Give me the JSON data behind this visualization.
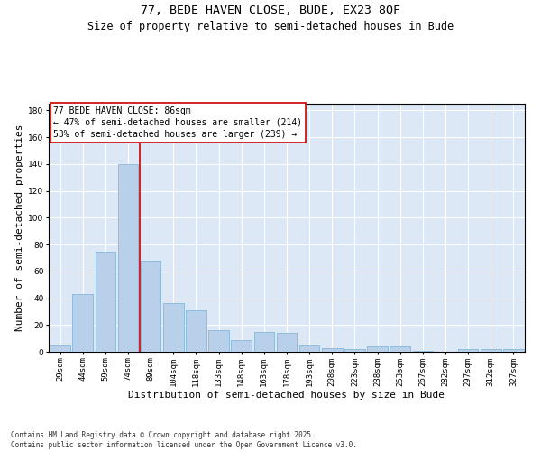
{
  "title1": "77, BEDE HAVEN CLOSE, BUDE, EX23 8QF",
  "title2": "Size of property relative to semi-detached houses in Bude",
  "xlabel": "Distribution of semi-detached houses by size in Bude",
  "ylabel": "Number of semi-detached properties",
  "categories": [
    "29sqm",
    "44sqm",
    "59sqm",
    "74sqm",
    "89sqm",
    "104sqm",
    "118sqm",
    "133sqm",
    "148sqm",
    "163sqm",
    "178sqm",
    "193sqm",
    "208sqm",
    "223sqm",
    "238sqm",
    "253sqm",
    "267sqm",
    "282sqm",
    "297sqm",
    "312sqm",
    "327sqm"
  ],
  "values": [
    5,
    43,
    75,
    140,
    68,
    36,
    31,
    16,
    9,
    15,
    14,
    5,
    3,
    2,
    4,
    4,
    1,
    0,
    2,
    2,
    2
  ],
  "bar_color": "#b8d0ea",
  "bar_edgecolor": "#7aafd4",
  "vline_pos": 3.5,
  "vline_color": "#cc0000",
  "ylim": [
    0,
    185
  ],
  "yticks": [
    0,
    20,
    40,
    60,
    80,
    100,
    120,
    140,
    160,
    180
  ],
  "annotation_title": "77 BEDE HAVEN CLOSE: 86sqm",
  "annotation_line2": "← 47% of semi-detached houses are smaller (214)",
  "annotation_line3": "53% of semi-detached houses are larger (239) →",
  "annotation_box_color": "#cc0000",
  "bg_color": "#dce8f5",
  "footer1": "Contains HM Land Registry data © Crown copyright and database right 2025.",
  "footer2": "Contains public sector information licensed under the Open Government Licence v3.0.",
  "title_fontsize": 9.5,
  "subtitle_fontsize": 8.5,
  "ylabel_fontsize": 8,
  "xlabel_fontsize": 8,
  "tick_fontsize": 6.5,
  "annotation_fontsize": 7,
  "footer_fontsize": 5.5
}
